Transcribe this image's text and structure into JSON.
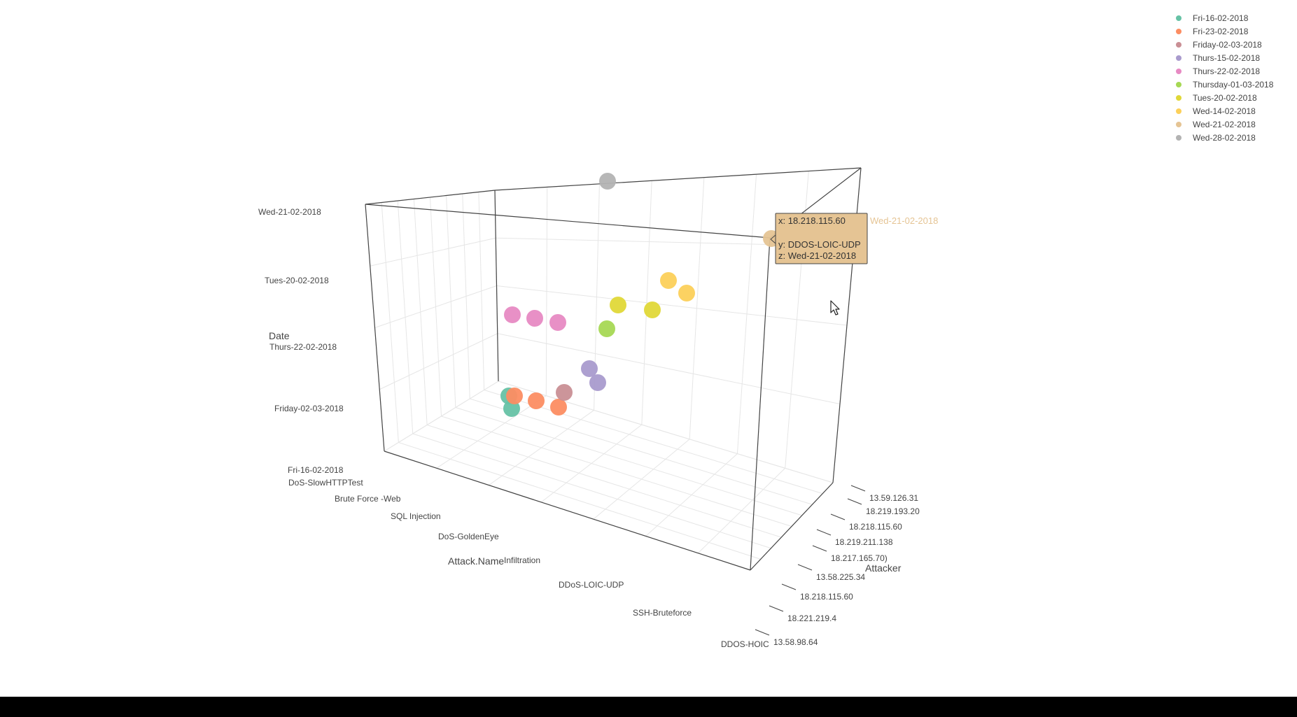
{
  "chart_data": {
    "type": "scatter3d",
    "x_axis": {
      "title": "Attacker",
      "ticks": [
        "13.58.98.64",
        "18.221.219.4",
        "18.218.115.60",
        "13.58.225.34",
        "18.217.165.70)",
        "18.219.211.138",
        "18.218.115.60",
        "18.219.193.20",
        "13.59.126.31"
      ]
    },
    "y_axis": {
      "title": "Attack.Name",
      "ticks": [
        "DoS-SlowHTTPTest",
        "Brute Force -Web",
        "SQL Injection",
        "DoS-GoldenEye",
        "Infiltration",
        "DDoS-LOIC-UDP",
        "SSH-Bruteforce",
        "DDOS-HOIC"
      ]
    },
    "z_axis": {
      "title": "Date",
      "ticks": [
        "Fri-16-02-2018",
        "Friday-02-03-2018",
        "Thurs-22-02-2018",
        "Tues-20-02-2018",
        "Wed-21-02-2018"
      ]
    },
    "legend_placement": "top-right",
    "series": [
      {
        "name": "Fri-16-02-2018",
        "color": "#66c2a5",
        "points": [
          {},
          {}
        ]
      },
      {
        "name": "Fri-23-02-2018",
        "color": "#fc8d62",
        "points": [
          {},
          {},
          {}
        ]
      },
      {
        "name": "Friday-02-03-2018",
        "color": "#c98f95",
        "points": [
          {}
        ]
      },
      {
        "name": "Thurs-15-02-2018",
        "color": "#a99bcd",
        "points": [
          {},
          {}
        ]
      },
      {
        "name": "Thurs-22-02-2018",
        "color": "#e78ac3",
        "points": [
          {},
          {},
          {}
        ]
      },
      {
        "name": "Thursday-01-03-2018",
        "color": "#a6d854",
        "points": [
          {}
        ]
      },
      {
        "name": "Tues-20-02-2018",
        "color": "#e0d838",
        "points": [
          {},
          {}
        ]
      },
      {
        "name": "Wed-14-02-2018",
        "color": "#fcd05a",
        "points": [
          {},
          {}
        ]
      },
      {
        "name": "Wed-21-02-2018",
        "color": "#e5c494",
        "points": [
          {}
        ]
      },
      {
        "name": "Wed-28-02-2018",
        "color": "#b3b3b3",
        "points": [
          {}
        ]
      }
    ],
    "hover": {
      "x": "x: 18.218.115.60",
      "y": "y: DDOS-LOIC-UDP",
      "z": "z: Wed-21-02-2018",
      "series_label": "Wed-21-02-2018",
      "background": "#e5c494"
    }
  }
}
